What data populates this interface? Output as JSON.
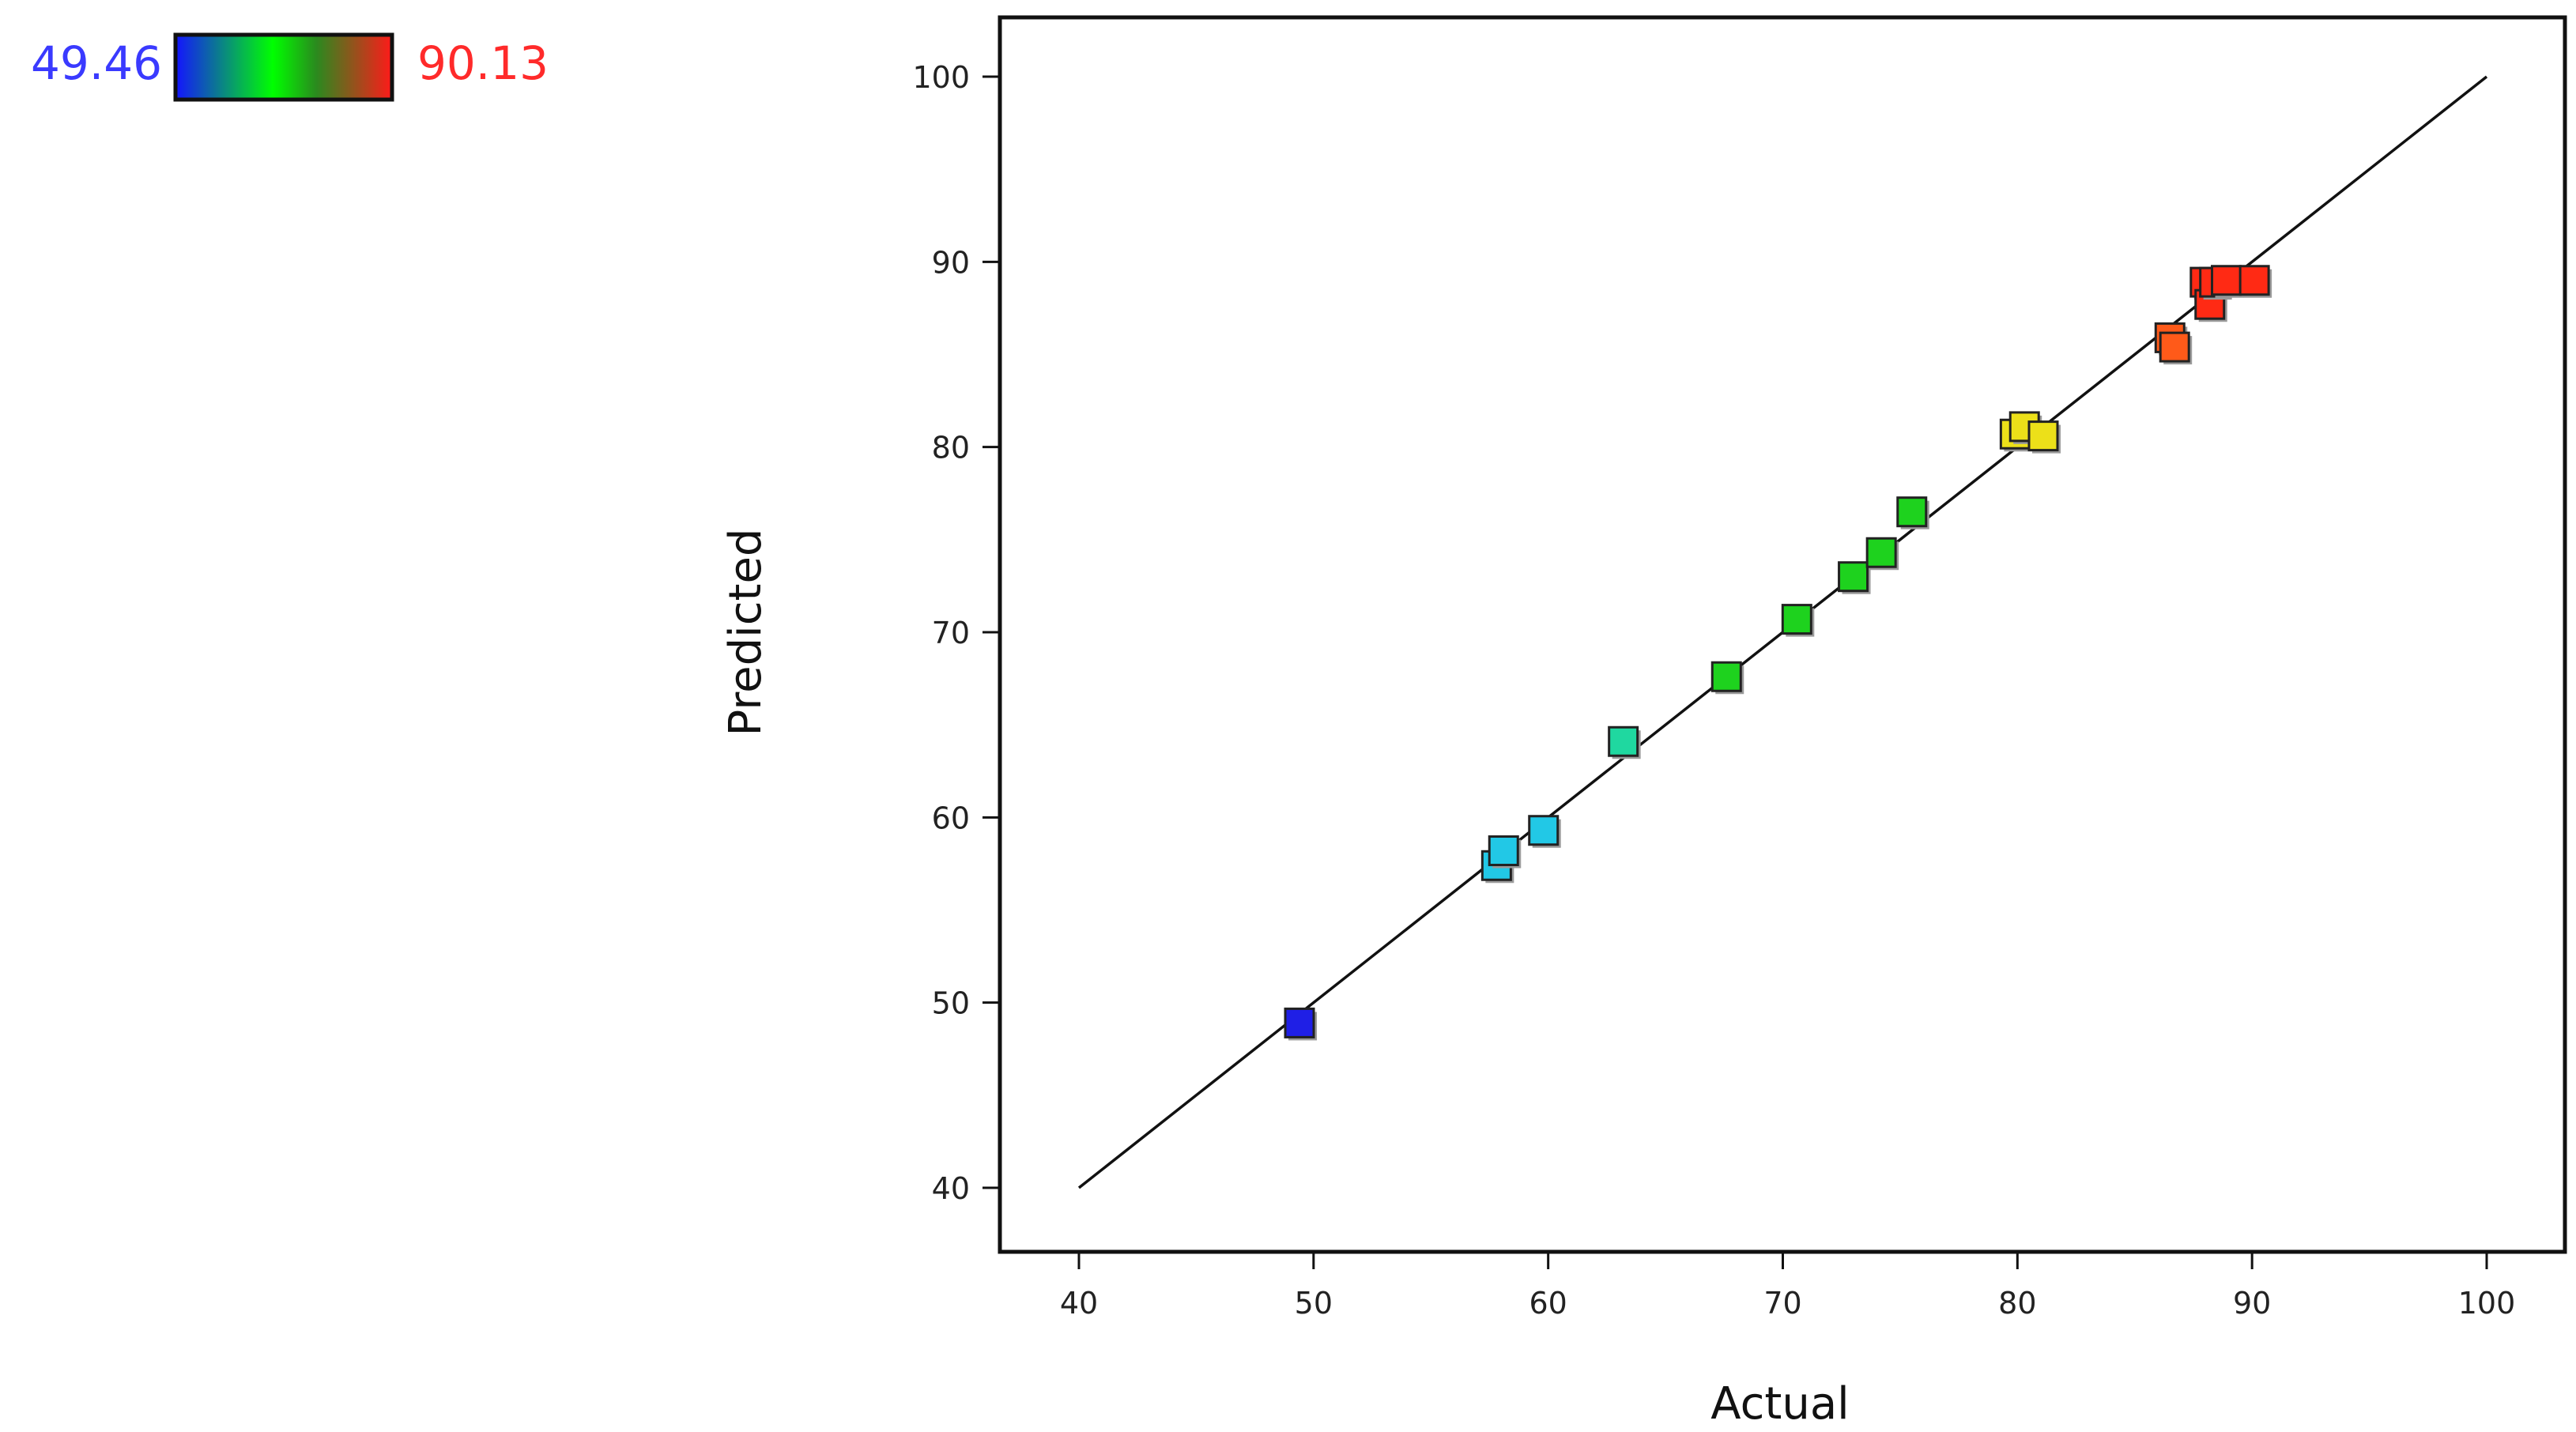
{
  "chart_data": {
    "type": "scatter",
    "xlabel": "Actual",
    "ylabel": "Predicted",
    "xlim": [
      40,
      100
    ],
    "ylim": [
      40,
      100
    ],
    "xticks": [
      40,
      50,
      60,
      70,
      80,
      90,
      100
    ],
    "yticks": [
      40,
      50,
      60,
      70,
      80,
      90,
      100
    ],
    "reference_line": [
      [
        40,
        40
      ],
      [
        100,
        100
      ]
    ],
    "grid": false,
    "marker": "square",
    "color_scale": {
      "min_label": "49.46",
      "max_label": "90.13",
      "min": 49.46,
      "max": 90.13,
      "min_label_color": "#3a3aff",
      "max_label_color": "#ff2a2a",
      "position": "top-left"
    },
    "points": [
      {
        "x": 49.4,
        "y": 48.9,
        "color": "#1f1fe6"
      },
      {
        "x": 57.8,
        "y": 57.4,
        "color": "#22c8e6"
      },
      {
        "x": 58.1,
        "y": 58.2,
        "color": "#22c8e6"
      },
      {
        "x": 59.8,
        "y": 59.3,
        "color": "#22c8e6"
      },
      {
        "x": 63.2,
        "y": 64.1,
        "color": "#1fd8a0"
      },
      {
        "x": 67.6,
        "y": 67.6,
        "color": "#1ed21e"
      },
      {
        "x": 70.6,
        "y": 70.7,
        "color": "#1ed21e"
      },
      {
        "x": 73.0,
        "y": 73.0,
        "color": "#1ed21e"
      },
      {
        "x": 74.2,
        "y": 74.3,
        "color": "#1ed21e"
      },
      {
        "x": 75.5,
        "y": 76.5,
        "color": "#1ed21e"
      },
      {
        "x": 79.9,
        "y": 80.7,
        "color": "#ece019"
      },
      {
        "x": 80.3,
        "y": 81.1,
        "color": "#ece019"
      },
      {
        "x": 81.1,
        "y": 80.6,
        "color": "#ece019"
      },
      {
        "x": 86.5,
        "y": 85.9,
        "color": "#ff5a19"
      },
      {
        "x": 86.7,
        "y": 85.4,
        "color": "#ff5a19"
      },
      {
        "x": 88.0,
        "y": 88.9,
        "color": "#ff2a14"
      },
      {
        "x": 88.2,
        "y": 87.7,
        "color": "#ff2a14"
      },
      {
        "x": 88.4,
        "y": 88.9,
        "color": "#ff2a14"
      },
      {
        "x": 88.9,
        "y": 89.0,
        "color": "#ff2a14"
      },
      {
        "x": 90.1,
        "y": 89.0,
        "color": "#ff2a14"
      }
    ]
  }
}
